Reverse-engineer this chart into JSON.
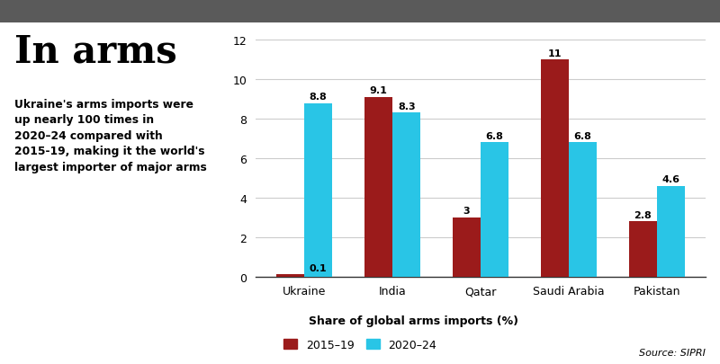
{
  "categories": [
    "Ukraine",
    "India",
    "Qatar",
    "Saudi Arabia",
    "Pakistan"
  ],
  "values_2015_19": [
    0.1,
    9.1,
    3.0,
    11.0,
    2.8
  ],
  "values_2020_24": [
    8.8,
    8.3,
    6.8,
    6.8,
    4.6
  ],
  "labels_2015_19": [
    "0.1",
    "9.1",
    "3",
    "11",
    "2.8"
  ],
  "labels_2020_24": [
    "8.8",
    "8.3",
    "6.8",
    "6.8",
    "4.6"
  ],
  "color_2015_19": "#9B1B1B",
  "color_2020_24": "#29C5E6",
  "title": "In arms",
  "subtitle_lines": [
    "Ukraine's arms imports were",
    "up nearly 100 times in",
    "2020–24 compared with",
    "2015-19, making it the world's",
    "largest importer of major arms"
  ],
  "xlabel": "Share of global arms imports (%)",
  "legend_2015_19": "2015–19",
  "legend_2020_24": "2020–24",
  "source": "Source: SIPRI",
  "ylim": [
    0,
    12.4
  ],
  "yticks": [
    0,
    2,
    4,
    6,
    8,
    10,
    12
  ],
  "bar_width": 0.32,
  "chart_bg": "#f5f5f0",
  "top_bar_color": "#b0b0b0"
}
